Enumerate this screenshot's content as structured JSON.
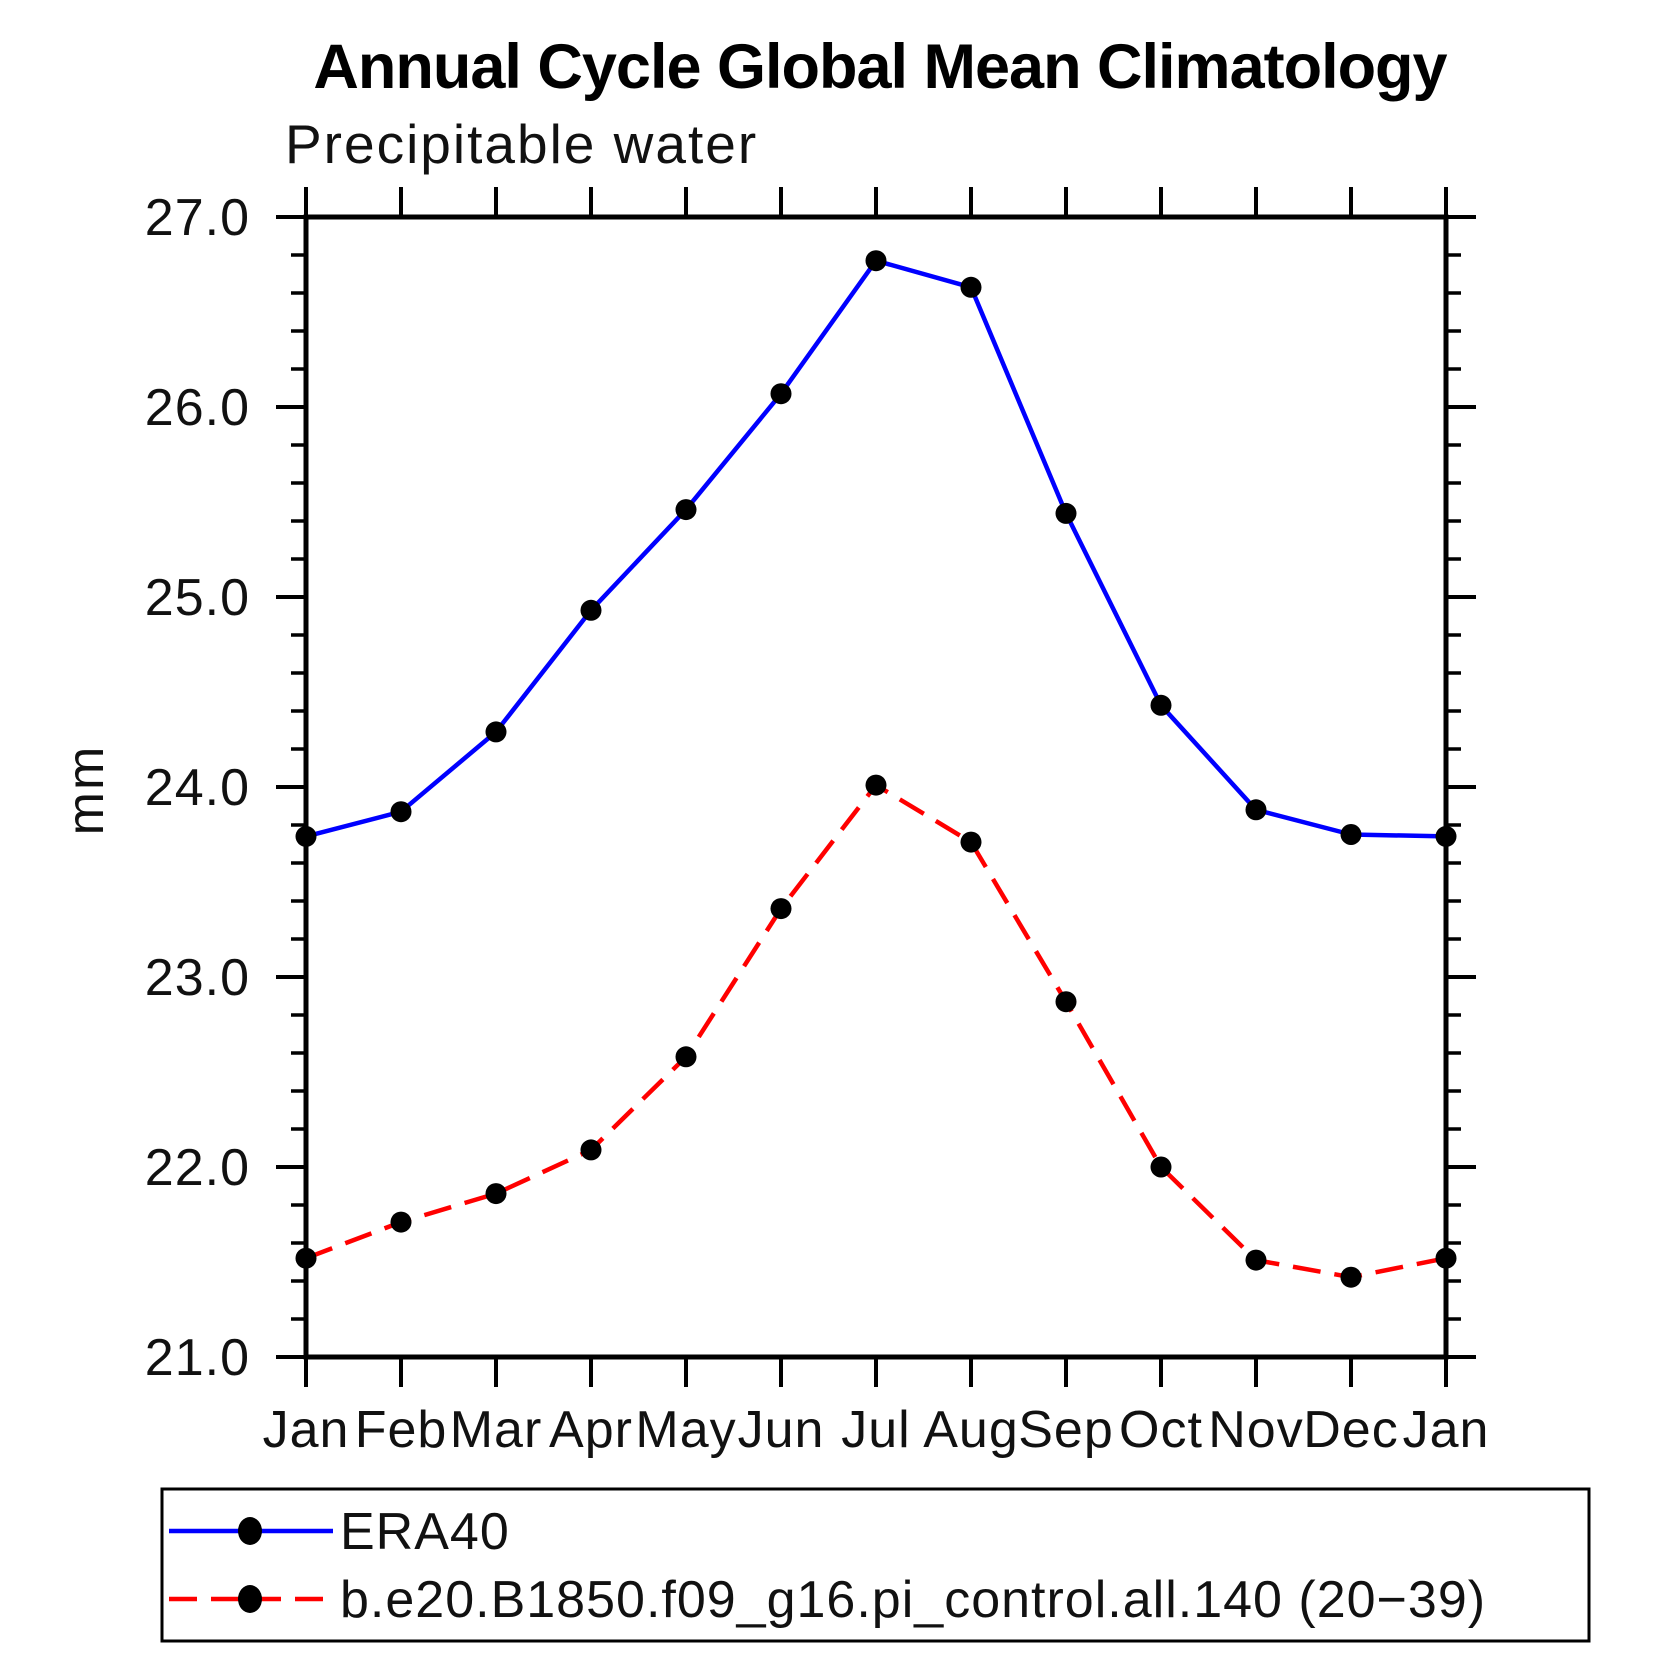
{
  "chart_data": {
    "type": "line",
    "title": "Annual Cycle Global Mean Climatology",
    "subtitle": "Precipitable water",
    "ylabel": "mm",
    "categories": [
      "Jan",
      "Feb",
      "Mar",
      "Apr",
      "May",
      "Jun",
      "Jul",
      "Aug",
      "Sep",
      "Oct",
      "Nov",
      "Dec",
      "Jan"
    ],
    "ylim": [
      21.0,
      27.0
    ],
    "ytick_interval_major": 1.0,
    "ytick_interval_minor": 0.2,
    "ytick_labels": [
      "21.0",
      "22.0",
      "23.0",
      "24.0",
      "25.0",
      "26.0",
      "27.0"
    ],
    "grid": false,
    "legend_position": "bottom",
    "axis_color": "#000000",
    "marker_color": "#000000",
    "series": [
      {
        "name": "ERA40",
        "color": "#0000ff",
        "line_style": "solid",
        "marker": "filled-circle",
        "values": [
          23.74,
          23.87,
          24.29,
          24.93,
          25.46,
          26.07,
          26.77,
          26.63,
          25.44,
          24.43,
          23.88,
          23.75,
          23.74
        ]
      },
      {
        "name": "b.e20.B1850.f09_g16.pi_control.all.140 (20−39)",
        "color": "#ff0000",
        "line_style": "dashed",
        "marker": "filled-circle",
        "values": [
          21.52,
          21.71,
          21.86,
          22.09,
          22.58,
          23.36,
          24.01,
          23.71,
          22.87,
          22.0,
          21.51,
          21.42,
          21.52
        ]
      }
    ]
  }
}
